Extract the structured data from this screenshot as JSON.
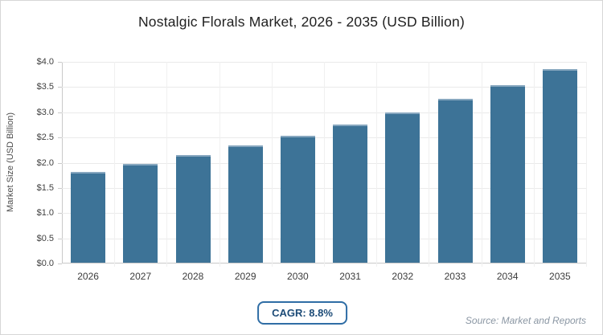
{
  "chart_data": {
    "type": "bar",
    "title": "Nostalgic Florals Market, 2026 - 2035 (USD Billion)",
    "categories": [
      "2026",
      "2027",
      "2028",
      "2029",
      "2030",
      "2031",
      "2032",
      "2033",
      "2034",
      "2035"
    ],
    "values": [
      1.8,
      1.96,
      2.13,
      2.32,
      2.52,
      2.74,
      2.98,
      3.25,
      3.53,
      3.84
    ],
    "xlabel": "",
    "ylabel": "Market Size (USD Billion)",
    "ylim": [
      0,
      4
    ],
    "ytick_step": 0.5,
    "ytick_prefix": "$",
    "grid": true,
    "legend": "none",
    "bar_color": "#3d7397"
  },
  "footer": {
    "cagr_label": "CAGR: 8.8%",
    "source": "Source: Market and Reports"
  },
  "colors": {
    "bar": "#3d7397",
    "bar_top_edge": "#87a7bf",
    "grid_horizontal": "#eaeaea",
    "grid_vertical": "#f0f0f0",
    "axis": "#c9c9c9",
    "title_text": "#212121",
    "tick_text": "#3f3f3f",
    "cagr_border": "#2f6da5",
    "cagr_text": "#1c4b77",
    "source_text": "#8a96a3",
    "frame_border": "#d6d6d6"
  }
}
